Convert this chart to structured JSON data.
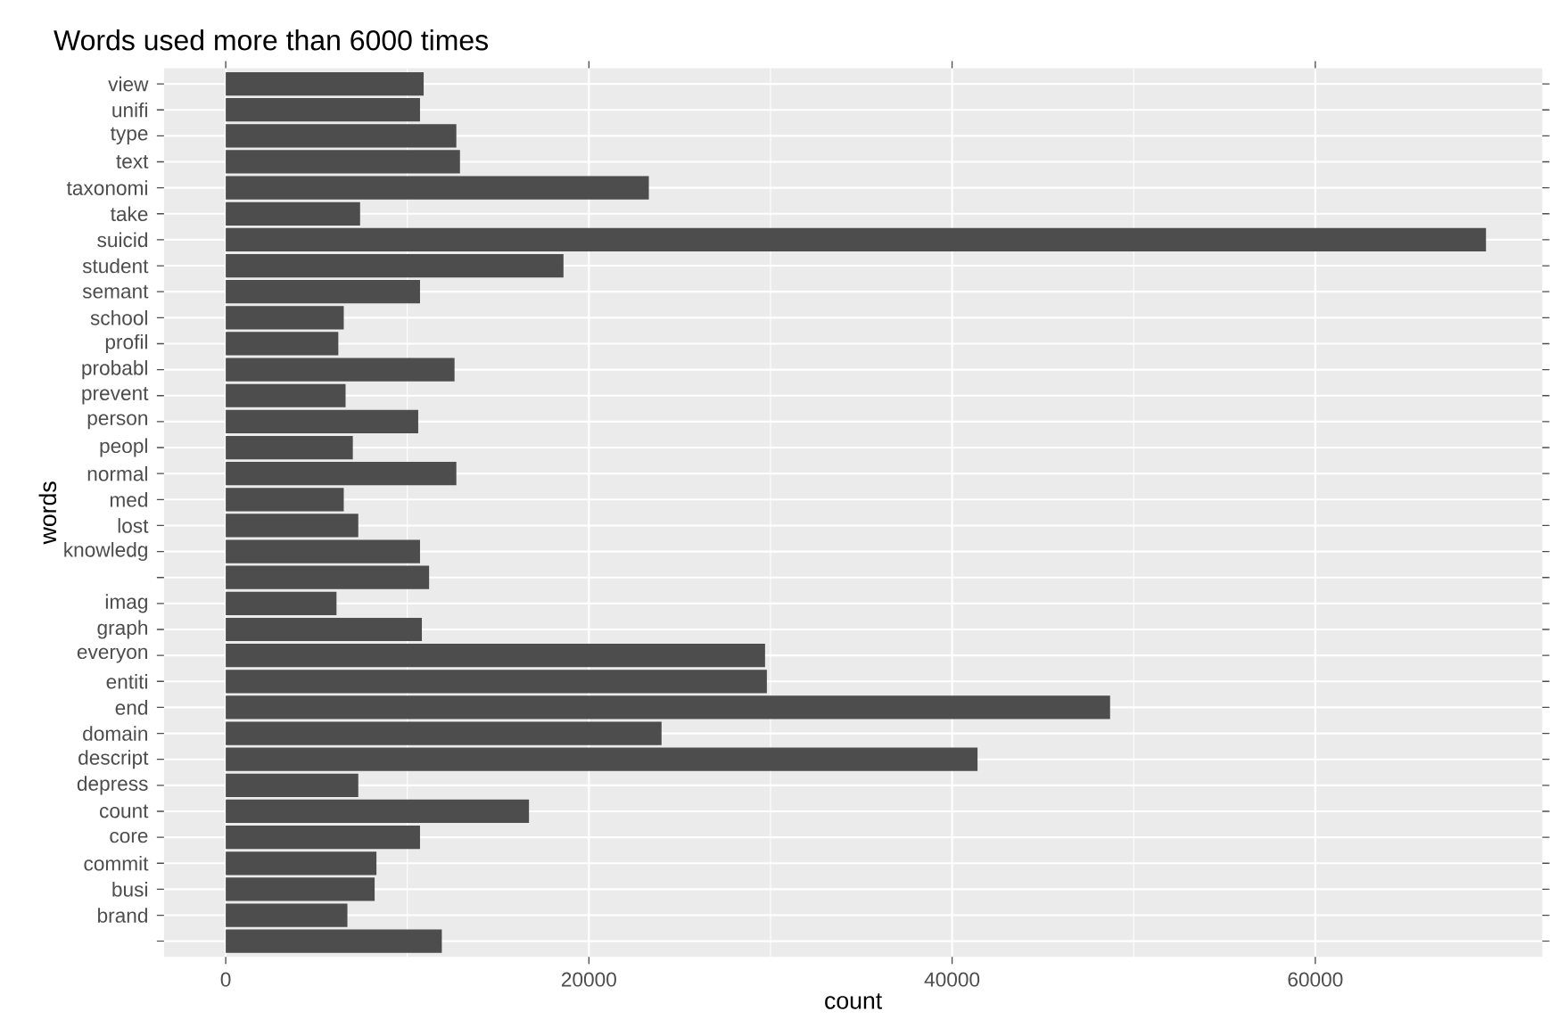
{
  "chart_data": {
    "type": "bar",
    "orientation": "horizontal",
    "title": "Words used more than 6000 times",
    "xlabel": "count",
    "ylabel": "words",
    "categories": [
      "view",
      "unifi",
      "type",
      "text",
      "taxonomi",
      "take",
      "suicid",
      "student",
      "semant",
      "school",
      "profil",
      "probabl",
      "prevent",
      "person",
      "peopl",
      "normal",
      "med",
      "lost",
      "knowledg",
      null,
      "imag",
      "graph",
      "everyon",
      "entiti",
      "end",
      "domain",
      "descript",
      "depress",
      "count",
      "core",
      "commit",
      "busi",
      "brand",
      null
    ],
    "values": [
      10900,
      10700,
      12700,
      12900,
      23300,
      7400,
      69400,
      18600,
      10700,
      6500,
      6200,
      12600,
      6600,
      10600,
      7000,
      12700,
      6500,
      7300,
      10700,
      11200,
      6100,
      10800,
      29700,
      29800,
      48700,
      24000,
      41400,
      7300,
      16700,
      10700,
      8300,
      8200,
      6700,
      11900
    ],
    "color": "#4d4d4d",
    "xlim": [
      -3400,
      72500
    ],
    "xticks": [
      0,
      20000,
      40000,
      60000
    ],
    "grid": true
  }
}
